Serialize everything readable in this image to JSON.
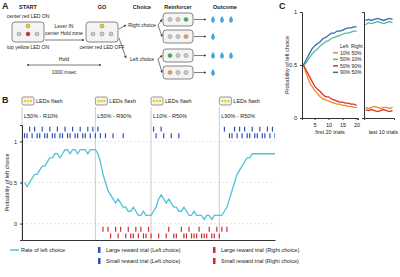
{
  "diagram": {
    "panel_labels": [
      "A",
      "B",
      "C"
    ],
    "stages": [
      "START",
      "GO",
      "Choice",
      "Reinforcer",
      "Outcome"
    ],
    "steps": [
      "center red LED ON",
      "top yellow LED ON",
      "Lever IN",
      "center Hold zone",
      "center red LED OFF",
      "Hold",
      "1000 msec",
      "Right choice",
      "Left choice"
    ]
  },
  "chart_data": [
    {
      "type": "line",
      "y_label": "Probability of left choice",
      "x": [
        1,
        2,
        3,
        4,
        5,
        6,
        7,
        8,
        9,
        10,
        11,
        12,
        13,
        14,
        15,
        16,
        17,
        18,
        19,
        20,
        21,
        22,
        23,
        24,
        25,
        26,
        27,
        28,
        29,
        30,
        31,
        32,
        33,
        34,
        35,
        36,
        37,
        38,
        39,
        40,
        41,
        42,
        43,
        44,
        45,
        46,
        47,
        48,
        49,
        50,
        51,
        52,
        53,
        54,
        55,
        56,
        57,
        58,
        59,
        60,
        61,
        62,
        63,
        64,
        65,
        66,
        67,
        68,
        69,
        70,
        71,
        72,
        73,
        74,
        75,
        76,
        77,
        78,
        79,
        80,
        81,
        82,
        83,
        84,
        85,
        86,
        87,
        88,
        89,
        90,
        91,
        92,
        93,
        94,
        95,
        96,
        97,
        98,
        99,
        100
      ],
      "xlim": [
        0,
        100
      ],
      "ylim": [
        -0.2,
        1.2
      ],
      "yticks": [
        0,
        0.5,
        1
      ],
      "grid": true,
      "tick_labels": "y",
      "legend": "bottom",
      "flash_label": "LEDs flash",
      "blocks": [
        {
          "start": 0,
          "label": "L50% - R10%"
        },
        {
          "start": 29,
          "label": "L50% - R90%"
        },
        {
          "start": 51,
          "label": "L10% - R50%"
        },
        {
          "start": 78,
          "label": "L90% - R50%"
        }
      ],
      "series": [
        {
          "name": "Rate of left choice",
          "type": "line",
          "color": "#4fc3d9",
          "values": [
            0.5,
            0.45,
            0.5,
            0.55,
            0.6,
            0.6,
            0.65,
            0.7,
            0.7,
            0.75,
            0.8,
            0.8,
            0.85,
            0.85,
            0.8,
            0.85,
            0.9,
            0.9,
            0.85,
            0.9,
            0.9,
            0.85,
            0.9,
            0.9,
            0.9,
            0.85,
            0.9,
            0.9,
            0.9,
            0.85,
            0.75,
            0.6,
            0.5,
            0.4,
            0.35,
            0.3,
            0.25,
            0.3,
            0.25,
            0.2,
            0.2,
            0.15,
            0.15,
            0.2,
            0.15,
            0.1,
            0.1,
            0.15,
            0.1,
            0.1,
            0.1,
            0.15,
            0.2,
            0.3,
            0.35,
            0.3,
            0.25,
            0.3,
            0.25,
            0.2,
            0.2,
            0.15,
            0.15,
            0.2,
            0.15,
            0.1,
            0.1,
            0.15,
            0.1,
            0.1,
            0.1,
            0.05,
            0.1,
            0.1,
            0.05,
            0.1,
            0.1,
            0.1,
            0.1,
            0.15,
            0.2,
            0.3,
            0.4,
            0.5,
            0.6,
            0.65,
            0.7,
            0.75,
            0.8,
            0.8,
            0.85,
            0.85,
            0.85,
            0.85,
            0.85,
            0.85,
            0.85,
            0.85,
            0.85,
            0.85
          ]
        },
        {
          "name": "Large reward trial (Left choice)",
          "type": "raster",
          "marker": "top-high",
          "color": "#2a52be",
          "x": [
            3,
            5,
            8,
            11,
            14,
            17,
            20,
            23,
            26,
            28,
            30,
            52,
            55,
            80,
            84,
            86,
            88,
            91,
            94,
            97,
            99
          ]
        },
        {
          "name": "Small reward trial (Left choice)",
          "type": "raster",
          "marker": "top-low",
          "color": "#2a52be",
          "x": [
            1,
            2,
            4,
            6,
            7,
            9,
            10,
            12,
            13,
            15,
            16,
            18,
            19,
            21,
            22,
            24,
            25,
            27,
            29,
            31,
            33,
            36,
            40,
            53,
            56,
            59,
            62,
            82,
            83,
            85,
            87,
            89,
            90,
            92,
            93,
            95,
            96,
            98,
            100
          ]
        },
        {
          "name": "Large reward trial (Right choice)",
          "type": "raster",
          "marker": "bottom-high",
          "color": "#d8262a",
          "x": [
            32,
            34,
            37,
            39,
            42,
            45,
            47,
            50,
            58,
            63,
            66,
            70,
            74,
            77,
            79,
            81
          ]
        },
        {
          "name": "Small reward trial (Right choice)",
          "type": "raster",
          "marker": "bottom-low",
          "color": "#d8262a",
          "x": [
            35,
            38,
            41,
            43,
            44,
            46,
            48,
            49,
            51,
            54,
            57,
            60,
            61,
            64,
            65,
            67,
            68,
            69,
            71,
            72,
            73,
            75,
            76,
            78
          ]
        }
      ]
    },
    {
      "type": "line",
      "x_label": "first 20 trials",
      "y_label": "Probability of left choice",
      "x": [
        1,
        2,
        3,
        4,
        5,
        6,
        7,
        8,
        9,
        10,
        11,
        12,
        13,
        14,
        15,
        16,
        17,
        18,
        19,
        20
      ],
      "xlim": [
        0.5,
        20.5
      ],
      "xticks": [
        5,
        10,
        15,
        20
      ],
      "ylim": [
        0,
        1
      ],
      "yticks": [
        0,
        0.5,
        1
      ],
      "legend": "right",
      "legend_title": [
        "Left",
        "Right"
      ],
      "series": [
        {
          "name": "10% 50%",
          "color": "#f08a24",
          "values": [
            0.5,
            0.42,
            0.35,
            0.3,
            0.26,
            0.23,
            0.2,
            0.18,
            0.17,
            0.16,
            0.15,
            0.14,
            0.13,
            0.13,
            0.12,
            0.12,
            0.11,
            0.11,
            0.1,
            0.1
          ]
        },
        {
          "name": "50% 10%",
          "color": "#5cb88a",
          "values": [
            0.5,
            0.52,
            0.56,
            0.6,
            0.63,
            0.65,
            0.68,
            0.7,
            0.72,
            0.73,
            0.75,
            0.76,
            0.77,
            0.78,
            0.79,
            0.8,
            0.8,
            0.81,
            0.82,
            0.82
          ]
        },
        {
          "name": "50% 90%",
          "color": "#d9342b",
          "values": [
            0.5,
            0.45,
            0.4,
            0.35,
            0.3,
            0.27,
            0.25,
            0.22,
            0.2,
            0.2,
            0.18,
            0.17,
            0.16,
            0.15,
            0.15,
            0.14,
            0.14,
            0.13,
            0.13,
            0.12
          ]
        },
        {
          "name": "90% 50%",
          "color": "#2f6db5",
          "values": [
            0.5,
            0.55,
            0.6,
            0.65,
            0.68,
            0.7,
            0.72,
            0.75,
            0.76,
            0.78,
            0.8,
            0.8,
            0.82,
            0.82,
            0.83,
            0.84,
            0.85,
            0.85,
            0.86,
            0.86
          ]
        }
      ]
    },
    {
      "type": "line",
      "x_label": "last 10 trials",
      "x": [
        1,
        2,
        3,
        4,
        5,
        6,
        7,
        8,
        9,
        10
      ],
      "xlim": [
        0.5,
        10.5
      ],
      "ylim": [
        0,
        1
      ],
      "tick_labels": false,
      "series": [
        {
          "color": "#f08a24",
          "values": [
            0.1,
            0.09,
            0.1,
            0.11,
            0.1,
            0.09,
            0.1,
            0.1,
            0.09,
            0.1
          ]
        },
        {
          "color": "#5cb88a",
          "values": [
            0.88,
            0.9,
            0.89,
            0.9,
            0.91,
            0.9,
            0.89,
            0.9,
            0.91,
            0.9
          ]
        },
        {
          "color": "#d9342b",
          "values": [
            0.08,
            0.07,
            0.08,
            0.07,
            0.06,
            0.07,
            0.08,
            0.07,
            0.06,
            0.07
          ]
        },
        {
          "color": "#2f6db5",
          "values": [
            0.92,
            0.93,
            0.92,
            0.93,
            0.94,
            0.93,
            0.92,
            0.93,
            0.94,
            0.93
          ]
        }
      ]
    }
  ]
}
